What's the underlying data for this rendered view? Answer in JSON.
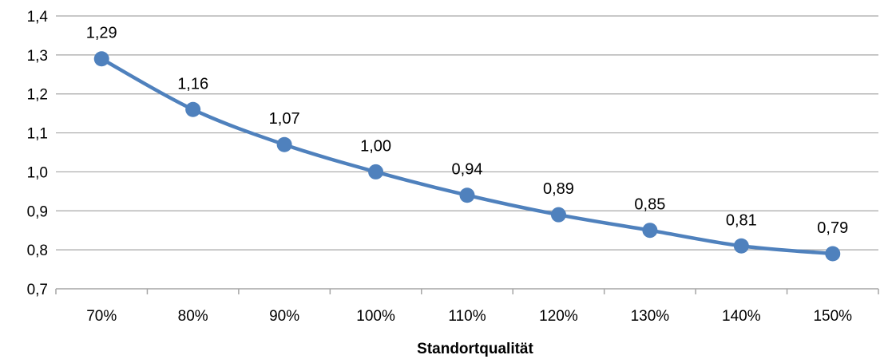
{
  "chart_data": {
    "type": "line",
    "title": "",
    "xlabel": "Standortqualität",
    "ylabel": "",
    "categories": [
      "70%",
      "80%",
      "90%",
      "100%",
      "110%",
      "120%",
      "130%",
      "140%",
      "150%"
    ],
    "series": [
      {
        "values": [
          1.29,
          1.16,
          1.07,
          1.0,
          0.94,
          0.89,
          0.85,
          0.81,
          0.79
        ],
        "labels": [
          "1,29",
          "1,16",
          "1,07",
          "1,00",
          "0,94",
          "0,89",
          "0,85",
          "0,81",
          "0,79"
        ],
        "color": "#4F81BD"
      }
    ],
    "ylim": [
      0.7,
      1.4
    ],
    "yticks": [
      0.7,
      0.8,
      0.9,
      1.0,
      1.1,
      1.2,
      1.3,
      1.4
    ],
    "ytick_labels": [
      "0,7",
      "0,8",
      "0,9",
      "1,0",
      "1,1",
      "1,2",
      "1,3",
      "1,4"
    ],
    "grid": true,
    "legend": "none",
    "colors": {
      "line": "#4F81BD",
      "grid": "#A6A6A6",
      "axis": "#A6A6A6"
    }
  }
}
